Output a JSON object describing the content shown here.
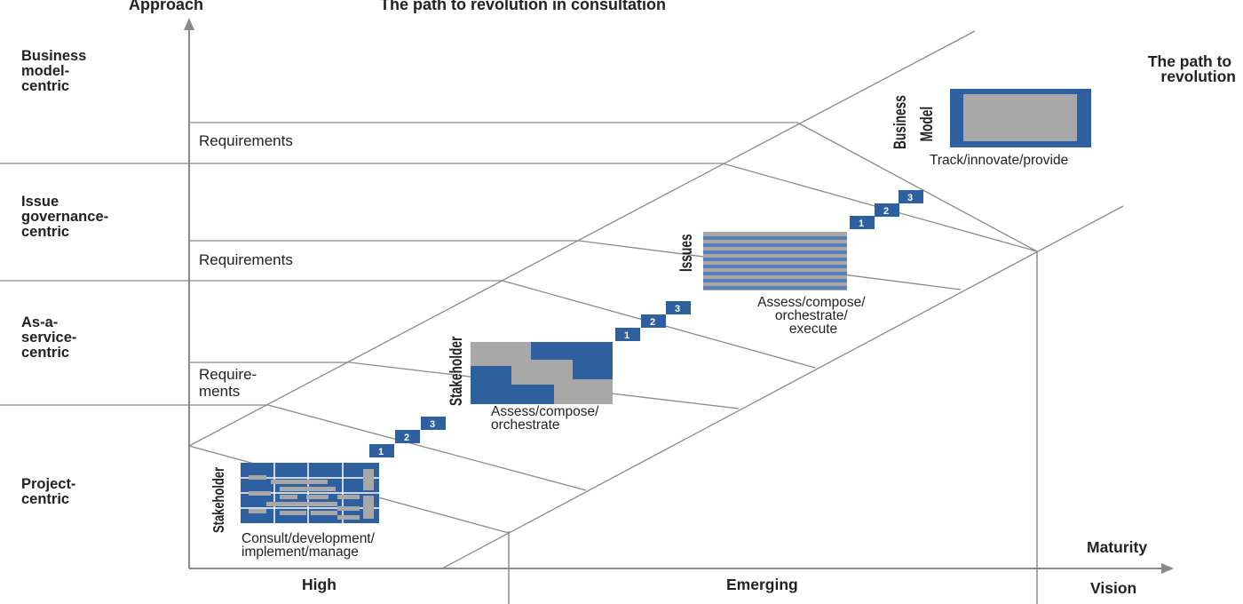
{
  "header": {
    "approach": "Approach",
    "title": "The path to revolution in consultation"
  },
  "rows": [
    {
      "lines": [
        "Business",
        "model-",
        "centric"
      ]
    },
    {
      "lines": [
        "Issue",
        "governance-",
        "centric"
      ]
    },
    {
      "lines": [
        "As-a-",
        "service-",
        "centric"
      ]
    },
    {
      "lines": [
        "Project-",
        "centric"
      ]
    }
  ],
  "requirements": [
    {
      "lines": [
        "Requirements"
      ]
    },
    {
      "lines": [
        "Requirements"
      ]
    },
    {
      "lines": [
        "Require-",
        "ments"
      ]
    }
  ],
  "stages": [
    {
      "rotated": [
        "Stakeholder"
      ],
      "caption": [
        "Consult/development/",
        "implement/manage"
      ]
    },
    {
      "rotated": [
        "Stakeholder"
      ],
      "caption": [
        "Assess/compose/",
        "orchestrate"
      ]
    },
    {
      "rotated": [
        "Issues"
      ],
      "caption": [
        "Assess/compose/",
        "orchestrate/",
        "execute"
      ]
    },
    {
      "rotated": [
        "Business",
        "Model"
      ],
      "caption": [
        "Track/innovate/provide"
      ]
    }
  ],
  "steps": [
    "1",
    "2",
    "3"
  ],
  "path_label": [
    "The path to",
    "revolution"
  ],
  "axis": {
    "maturity": "Maturity",
    "high": "High",
    "emerging": "Emerging",
    "vision": "Vision"
  },
  "colors": {
    "blue": "#2e5f9e",
    "gray": "#a8a8a8",
    "line": "#8a8a8a",
    "text": "#222222"
  }
}
